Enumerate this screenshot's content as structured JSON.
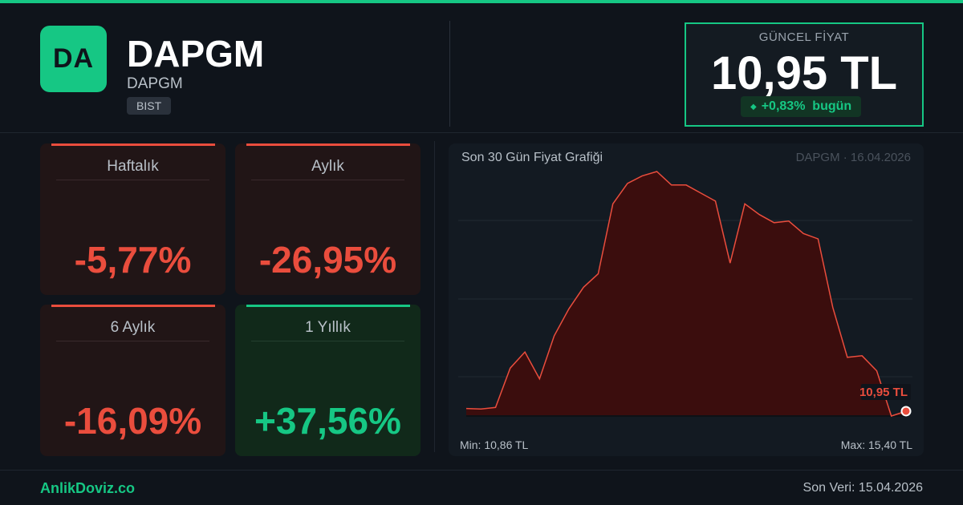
{
  "colors": {
    "accent": "#16c784",
    "negative": "#ea4d3d",
    "background": "#0f141b"
  },
  "header": {
    "logo_text": "DA",
    "ticker": "DAPGM",
    "company": "DAPGM",
    "exchange": "BIST"
  },
  "price": {
    "label": "GÜNCEL FİYAT",
    "value": "10,95 TL",
    "change_icon": "diamond-icon",
    "change": "+0,83%  bugün"
  },
  "stats": [
    {
      "label": "Haftalık",
      "value": "-5,77%",
      "trend": "negative"
    },
    {
      "label": "Aylık",
      "value": "-26,95%",
      "trend": "negative"
    },
    {
      "label": "6 Aylık",
      "value": "-16,09%",
      "trend": "negative"
    },
    {
      "label": "1 Yıllık",
      "value": "+37,56%",
      "trend": "positive"
    }
  ],
  "chart": {
    "title": "Son 30 Gün Fiyat Grafiği",
    "meta": "DAPGM · 16.04.2026",
    "min_label": "Min: 10,86 TL",
    "max_label": "Max: 15,40 TL",
    "last_label": "10,95 TL"
  },
  "chart_data": {
    "type": "area",
    "title": "Son 30 Gün Fiyat Grafiği",
    "xlabel": "",
    "ylabel": "",
    "ylim": [
      10.86,
      15.4
    ],
    "grid": true,
    "series": [
      {
        "values": [
          11.0,
          10.99,
          11.02,
          11.75,
          12.05,
          11.55,
          12.35,
          12.85,
          13.25,
          13.5,
          14.8,
          15.18,
          15.32,
          15.4,
          15.15,
          15.15,
          15.0,
          14.85,
          13.7,
          14.8,
          14.6,
          14.45,
          14.48,
          14.25,
          14.15,
          12.88,
          11.95,
          11.98,
          11.7,
          10.86,
          10.95
        ]
      }
    ]
  },
  "footer": {
    "brand": "AnlikDoviz.co",
    "last_data": "Son Veri: 15.04.2026"
  }
}
